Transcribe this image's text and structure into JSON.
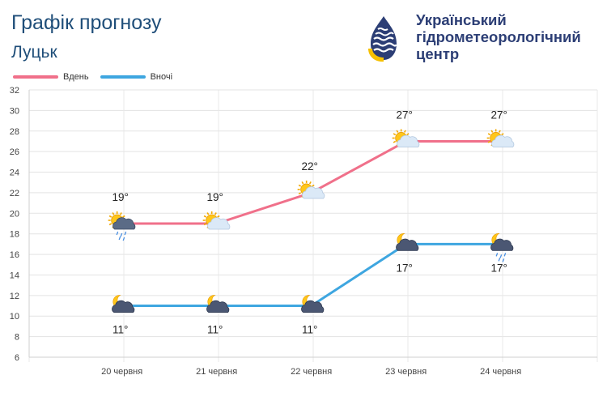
{
  "header": {
    "title": "Графік прогнозу",
    "city": "Луцьк"
  },
  "logo": {
    "line1": "Український",
    "line2": "гідрометеорологічний",
    "line3": "центр",
    "color": "#2c3e75",
    "accent": "#f5c000"
  },
  "chart_data": {
    "type": "line",
    "categories": [
      "20 червня",
      "21 червня",
      "22 червня",
      "23 червня",
      "24 червня"
    ],
    "series": [
      {
        "name": "Вдень",
        "values": [
          19,
          19,
          22,
          27,
          27
        ],
        "color": "#f0708a",
        "labels": [
          "19°",
          "19°",
          "22°",
          "27°",
          "27°"
        ],
        "icons": [
          "sun-cloud-rain-icon",
          "sun-cloud-icon",
          "sun-cloud-icon",
          "sun-cloud-icon",
          "sun-cloud-icon"
        ]
      },
      {
        "name": "Вночі",
        "values": [
          11,
          11,
          11,
          17,
          17
        ],
        "color": "#3ea6e0",
        "labels": [
          "11°",
          "11°",
          "11°",
          "17°",
          "17°"
        ],
        "icons": [
          "moon-cloud-icon",
          "moon-cloud-icon",
          "moon-cloud-icon",
          "moon-cloud-icon",
          "moon-cloud-rain-icon"
        ]
      }
    ],
    "ylim": [
      6,
      32
    ],
    "yticks": [
      6,
      8,
      10,
      12,
      14,
      16,
      18,
      20,
      22,
      24,
      26,
      28,
      30,
      32
    ],
    "grid": true,
    "legend": "top-left"
  }
}
